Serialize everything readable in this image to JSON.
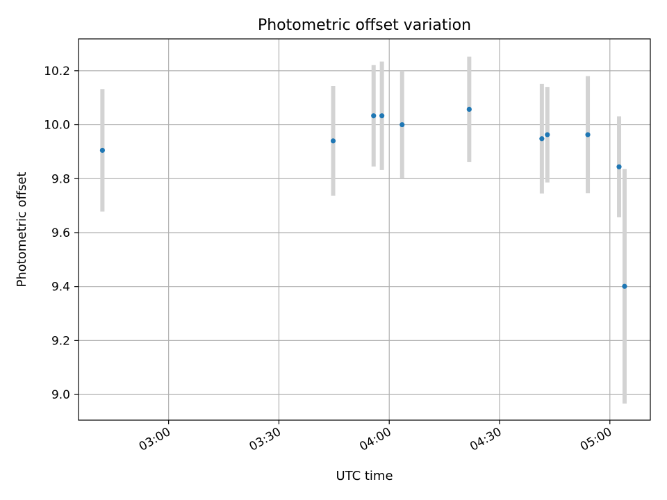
{
  "chart_data": {
    "type": "scatter",
    "title": "Photometric offset variation",
    "xlabel": "UTC time",
    "ylabel": "Photometric offset",
    "xlim": [
      "02:35:30",
      "05:11:00"
    ],
    "ylim": [
      8.905,
      10.318
    ],
    "xticks": [
      "03:00",
      "03:30",
      "04:00",
      "04:30",
      "05:00"
    ],
    "yticks": [
      9.0,
      9.2,
      9.4,
      9.6,
      9.8,
      10.0,
      10.2
    ],
    "grid": true,
    "series": [
      {
        "marker_color": "#1f77b4",
        "errorbar_color": "#d3d3d3",
        "points": [
          {
            "x": "02:42:00",
            "y": 9.905,
            "yerr": 0.227
          },
          {
            "x": "03:44:45",
            "y": 9.94,
            "yerr": 0.203
          },
          {
            "x": "03:55:45",
            "y": 10.033,
            "yerr": 0.188
          },
          {
            "x": "03:58:00",
            "y": 10.033,
            "yerr": 0.201
          },
          {
            "x": "04:03:30",
            "y": 10.0,
            "yerr": 0.2
          },
          {
            "x": "04:21:45",
            "y": 10.057,
            "yerr": 0.195
          },
          {
            "x": "04:41:30",
            "y": 9.948,
            "yerr": 0.203
          },
          {
            "x": "04:43:00",
            "y": 9.963,
            "yerr": 0.177
          },
          {
            "x": "04:54:00",
            "y": 9.963,
            "yerr": 0.217
          },
          {
            "x": "05:02:30",
            "y": 9.844,
            "yerr": 0.187
          },
          {
            "x": "05:04:00",
            "y": 9.401,
            "yerr": 0.435
          }
        ]
      }
    ]
  }
}
